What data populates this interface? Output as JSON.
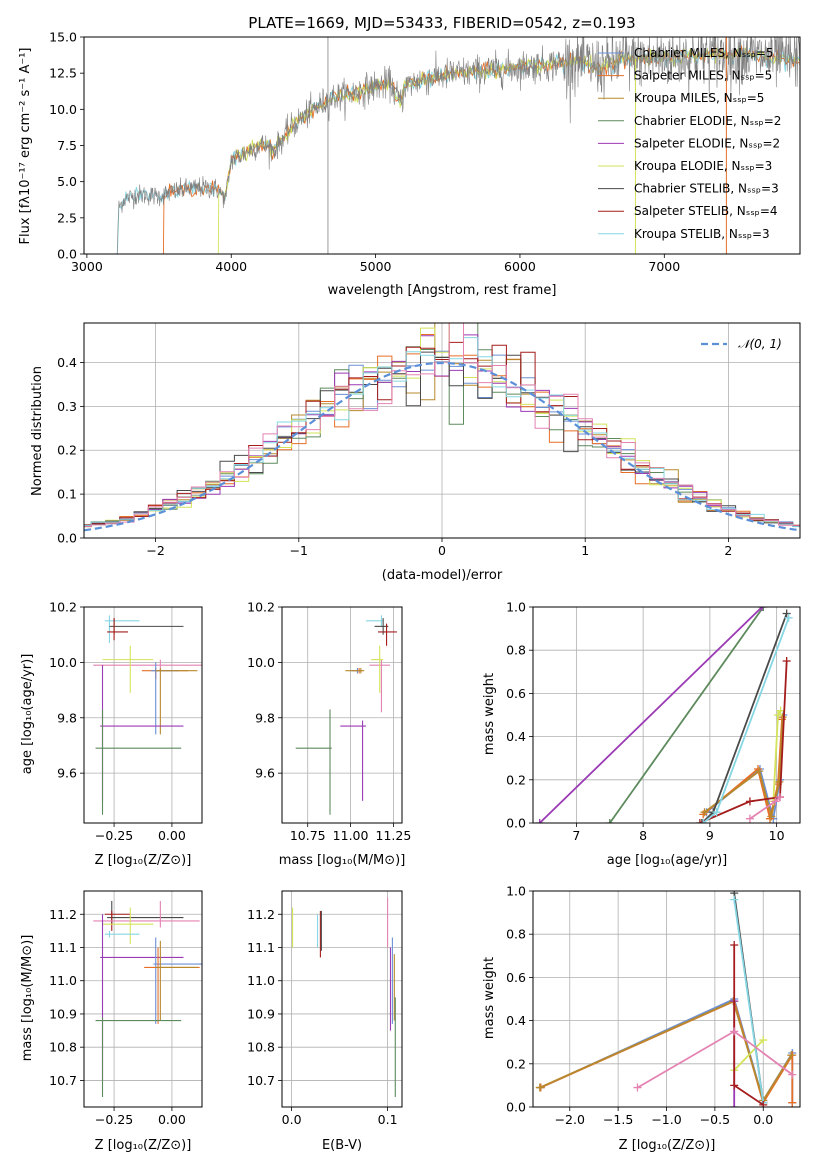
{
  "colors": {
    "Chabrier MILES": "#6b8fd6",
    "Salpeter MILES": "#e66f27",
    "Kroupa MILES": "#b7892d",
    "Chabrier ELODIE": "#5d8a5d",
    "Salpeter ELODIE": "#9b3ab5",
    "Kroupa ELODIE": "#d4e35a",
    "Chabrier STELIB": "#4a4a4a",
    "Salpeter STELIB": "#a51c1c",
    "Kroupa STELIB": "#86d7e3",
    "Pink": "#e482b2",
    "Spectrum": "#808080"
  },
  "chart_data": [
    {
      "id": "spectrum",
      "type": "line",
      "title": "PLATE=1669, MJD=53433, FIBERID=0542, z=0.193",
      "xlabel": "wavelength [Angstrom, rest frame]",
      "ylabel": "Flux [fλ10⁻¹⁷ erg cm⁻² s⁻¹ A⁻¹]",
      "xlim": [
        2980,
        7940
      ],
      "ylim": [
        0,
        15
      ],
      "xticks": [
        "3000",
        "4000",
        "5000",
        "6000",
        "7000"
      ],
      "yticks": [
        "0.0",
        "2.5",
        "5.0",
        "7.5",
        "10.0",
        "12.5",
        "15.0"
      ],
      "legend": [
        "Chabrier MILES, Nₛₛₚ=5",
        "Salpeter MILES, Nₛₛₚ=5",
        "Kroupa MILES, Nₛₛₚ=5",
        "Chabrier ELODIE, Nₛₛₚ=2",
        "Salpeter ELODIE, Nₛₛₚ=2",
        "Kroupa ELODIE, Nₛₛₚ=3",
        "Chabrier STELIB, Nₛₛₚ=3",
        "Salpeter STELIB, Nₛₛₚ=4",
        "Kroupa STELIB, Nₛₛₚ=3"
      ],
      "legend_loc": "upper right",
      "continuum": [
        [
          3210,
          0
        ],
        [
          3220,
          3.2
        ],
        [
          3260,
          3.8
        ],
        [
          3350,
          4.1
        ],
        [
          3500,
          4.0
        ],
        [
          3600,
          4.3
        ],
        [
          3700,
          4.5
        ],
        [
          3800,
          4.6
        ],
        [
          3900,
          4.5
        ],
        [
          3960,
          3.8
        ],
        [
          4000,
          6.5
        ],
        [
          4100,
          7.0
        ],
        [
          4200,
          7.6
        ],
        [
          4300,
          7.2
        ],
        [
          4400,
          8.6
        ],
        [
          4500,
          9.5
        ],
        [
          4600,
          10.2
        ],
        [
          4700,
          10.8
        ],
        [
          4800,
          11.0
        ],
        [
          4900,
          11.3
        ],
        [
          5000,
          11.6
        ],
        [
          5100,
          11.8
        ],
        [
          5180,
          10.4
        ],
        [
          5200,
          11.6
        ],
        [
          5300,
          12.0
        ],
        [
          5500,
          12.4
        ],
        [
          5700,
          12.6
        ],
        [
          5900,
          12.8
        ],
        [
          6000,
          12.9
        ],
        [
          6200,
          13.1
        ],
        [
          6400,
          13.3
        ],
        [
          6560,
          12.9
        ],
        [
          6700,
          13.4
        ],
        [
          6900,
          13.5
        ],
        [
          7100,
          13.6
        ],
        [
          7300,
          13.8
        ],
        [
          7500,
          13.8
        ],
        [
          7700,
          13.6
        ],
        [
          7900,
          13.5
        ]
      ],
      "noise_start": 6300,
      "vline_x": 4670,
      "model_starts": [
        3210,
        3530,
        3910,
        6800,
        7430
      ]
    },
    {
      "id": "residuals",
      "type": "histogram",
      "xlabel": "(data-model)/error",
      "ylabel": "Normed distribution",
      "xlim": [
        -2.5,
        2.5
      ],
      "ylim": [
        0,
        0.49
      ],
      "xticks": [
        "−2",
        "−1",
        "0",
        "1",
        "2"
      ],
      "yticks": [
        "0.0",
        "0.1",
        "0.2",
        "0.3",
        "0.4"
      ],
      "legend": "𝒩(0, 1)",
      "bin_width": 0.1
    },
    {
      "id": "age_vs_Z",
      "type": "errorbar",
      "xlabel": "Z [log₁₀(Z/Z⊙)]",
      "ylabel": "age  [log₁₀(age/yr)]",
      "xlim": [
        -0.38,
        0.13
      ],
      "ylim": [
        9.42,
        10.2
      ],
      "xticks": [
        "−0.25",
        "0.00"
      ],
      "yticks": [
        "9.6",
        "9.8",
        "10.0",
        "10.2"
      ],
      "points": [
        {
          "c": "Kroupa STELIB",
          "x": -0.27,
          "xe": [
            0.02,
            0.13
          ],
          "y": 10.15,
          "ye": [
            0.08,
            0.02
          ]
        },
        {
          "c": "Chabrier STELIB",
          "x": -0.25,
          "xe": [
            0.02,
            0.3
          ],
          "y": 10.13,
          "ye": [
            0.03,
            0.03
          ]
        },
        {
          "c": "Salpeter STELIB",
          "x": -0.25,
          "xe": [
            0.03,
            0.06
          ],
          "y": 10.11,
          "ye": [
            0.03,
            0.05
          ]
        },
        {
          "c": "Pink",
          "x": -0.05,
          "xe": [
            0.29,
            0.18
          ],
          "y": 9.99,
          "ye": [
            0.02,
            0.02
          ]
        },
        {
          "c": "Kroupa ELODIE",
          "x": -0.18,
          "xe": [
            0.12,
            0.1
          ],
          "y": 10.01,
          "ye": [
            0.12,
            0.05
          ]
        },
        {
          "c": "Salpeter MILES",
          "x": -0.07,
          "xe": [
            0.06,
            0.14
          ],
          "y": 9.97,
          "ye": [
            0.03,
            0.01
          ]
        },
        {
          "c": "Chabrier MILES",
          "x": -0.07,
          "xe": [
            0.02,
            0.1
          ],
          "y": 9.97,
          "ye": [
            0.23,
            0.03
          ]
        },
        {
          "c": "Kroupa MILES",
          "x": -0.05,
          "xe": [
            0.02,
            0.16
          ],
          "y": 9.97,
          "ye": [
            0.23,
            0.01
          ]
        },
        {
          "c": "Salpeter ELODIE",
          "x": -0.3,
          "xe": [
            0.01,
            0.35
          ],
          "y": 9.77,
          "ye": [
            0.27,
            0.22
          ]
        },
        {
          "c": "Chabrier ELODIE",
          "x": -0.3,
          "xe": [
            0.03,
            0.34
          ],
          "y": 9.69,
          "ye": [
            0.24,
            0.14
          ]
        }
      ]
    },
    {
      "id": "age_vs_mass",
      "type": "errorbar",
      "xlabel": "mass [log₁₀(M/M⊙)]",
      "ylabel": "",
      "xlim": [
        10.6,
        11.3
      ],
      "ylim": [
        9.42,
        10.2
      ],
      "xticks": [
        "10.75",
        "11.00",
        "11.25"
      ],
      "yticks": [
        "9.6",
        "9.8",
        "10.0",
        "10.2"
      ],
      "points": [
        {
          "c": "Kroupa STELIB",
          "x": 11.18,
          "xe": [
            0.09,
            0.01
          ],
          "y": 10.15,
          "ye": [
            0.02,
            0.02
          ]
        },
        {
          "c": "Chabrier STELIB",
          "x": 11.19,
          "xe": [
            0.05,
            0.03
          ],
          "y": 10.13,
          "ye": [
            0.03,
            0.03
          ]
        },
        {
          "c": "Salpeter STELIB",
          "x": 11.21,
          "xe": [
            0.05,
            0.06
          ],
          "y": 10.11,
          "ye": [
            0.05,
            0.03
          ]
        },
        {
          "c": "Pink",
          "x": 11.18,
          "xe": [
            0.07,
            0.05
          ],
          "y": 9.99,
          "ye": [
            0.17,
            0.02
          ]
        },
        {
          "c": "Kroupa ELODIE",
          "x": 11.17,
          "xe": [
            0.05,
            0.02
          ],
          "y": 10.01,
          "ye": [
            0.12,
            0.05
          ]
        },
        {
          "c": "Salpeter MILES",
          "x": 11.05,
          "xe": [
            0.04,
            0.02
          ],
          "y": 9.97,
          "ye": [
            0.01,
            0.01
          ]
        },
        {
          "c": "Chabrier MILES",
          "x": 11.04,
          "xe": [
            0.04,
            0.02
          ],
          "y": 9.97,
          "ye": [
            0.01,
            0.01
          ]
        },
        {
          "c": "Kroupa MILES",
          "x": 11.06,
          "xe": [
            0.09,
            0.02
          ],
          "y": 9.97,
          "ye": [
            0.01,
            0.01
          ]
        },
        {
          "c": "Salpeter ELODIE",
          "x": 11.07,
          "xe": [
            0.13,
            0.02
          ],
          "y": 9.77,
          "ye": [
            0.27,
            0.02
          ]
        },
        {
          "c": "Chabrier ELODIE",
          "x": 10.88,
          "xe": [
            0.2,
            0.01
          ],
          "y": 9.69,
          "ye": [
            0.24,
            0.14
          ]
        }
      ]
    },
    {
      "id": "weight_vs_age",
      "type": "line",
      "xlabel": "age  [log₁₀(age/yr)]",
      "ylabel": "mass weight",
      "xlim": [
        6.35,
        10.35
      ],
      "ylim": [
        0,
        1
      ],
      "xticks": [
        "7",
        "8",
        "9",
        "10"
      ],
      "yticks": [
        "0.0",
        "0.2",
        "0.4",
        "0.6",
        "0.8",
        "1.0"
      ],
      "series": [
        {
          "c": "Chabrier MILES",
          "x": [
            8.95,
            9.75,
            9.95,
            10.05,
            10.1
          ],
          "y": [
            0.05,
            0.25,
            0.02,
            0.2,
            0.5
          ]
        },
        {
          "c": "Salpeter MILES",
          "x": [
            8.9,
            9.72,
            9.9,
            10.02,
            10.08
          ],
          "y": [
            0.04,
            0.25,
            0.02,
            0.18,
            0.48
          ]
        },
        {
          "c": "Kroupa MILES",
          "x": [
            8.92,
            9.74,
            9.92,
            10.04,
            10.09
          ],
          "y": [
            0.05,
            0.24,
            0.03,
            0.19,
            0.49
          ]
        },
        {
          "c": "Chabrier ELODIE",
          "x": [
            7.5,
            9.8
          ],
          "y": [
            0.0,
            1.0
          ]
        },
        {
          "c": "Salpeter ELODIE",
          "x": [
            6.45,
            9.78
          ],
          "y": [
            0.0,
            1.0
          ]
        },
        {
          "c": "Kroupa ELODIE",
          "x": [
            9.95,
            10.02,
            10.06
          ],
          "y": [
            0.1,
            0.5,
            0.52
          ]
        },
        {
          "c": "Chabrier STELIB",
          "x": [
            8.88,
            9.05,
            10.15
          ],
          "y": [
            0.0,
            0.05,
            0.97
          ]
        },
        {
          "c": "Salpeter STELIB",
          "x": [
            8.85,
            9.6,
            10.05,
            10.15
          ],
          "y": [
            0.0,
            0.1,
            0.12,
            0.75
          ]
        },
        {
          "c": "Kroupa STELIB",
          "x": [
            8.9,
            9.1,
            10.18
          ],
          "y": [
            0.0,
            0.05,
            0.95
          ]
        },
        {
          "c": "Pink",
          "x": [
            9.6,
            9.98,
            10.05
          ],
          "y": [
            0.02,
            0.1,
            0.12
          ]
        }
      ]
    },
    {
      "id": "mass_vs_Z",
      "type": "errorbar",
      "xlabel": "Z [log₁₀(Z/Z⊙)]",
      "ylabel": "mass [log₁₀(M/M⊙)]",
      "xlim": [
        -0.38,
        0.13
      ],
      "ylim": [
        10.62,
        11.27
      ],
      "xticks": [
        "−0.25",
        "0.00"
      ],
      "yticks": [
        "10.7",
        "10.8",
        "10.9",
        "11.0",
        "11.1",
        "11.2"
      ],
      "points": [
        {
          "c": "Chabrier STELIB",
          "x": -0.26,
          "xe": [
            0.02,
            0.31
          ],
          "y": 11.19,
          "ye": [
            0.02,
            0.05
          ]
        },
        {
          "c": "Salpeter STELIB",
          "x": -0.26,
          "xe": [
            0.03,
            0.08
          ],
          "y": 11.2,
          "ye": [
            0.05,
            0.01
          ]
        },
        {
          "c": "Pink",
          "x": -0.05,
          "xe": [
            0.29,
            0.17
          ],
          "y": 11.18,
          "ye": [
            0.02,
            0.06
          ]
        },
        {
          "c": "Kroupa ELODIE",
          "x": -0.18,
          "xe": [
            0.12,
            0.1
          ],
          "y": 11.17,
          "ye": [
            0.06,
            0.05
          ]
        },
        {
          "c": "Kroupa STELIB",
          "x": -0.27,
          "xe": [
            0.02,
            0.13
          ],
          "y": 11.14,
          "ye": [
            0.01,
            0.01
          ]
        },
        {
          "c": "Salpeter ELODIE",
          "x": -0.3,
          "xe": [
            0.01,
            0.35
          ],
          "y": 11.07,
          "ye": [
            0.37,
            0.13
          ]
        },
        {
          "c": "Chabrier MILES",
          "x": -0.07,
          "xe": [
            0.01,
            0.2
          ],
          "y": 11.05,
          "ye": [
            0.18,
            0.08
          ]
        },
        {
          "c": "Salpeter MILES",
          "x": -0.06,
          "xe": [
            0.06,
            0.18
          ],
          "y": 11.04,
          "ye": [
            0.17,
            0.06
          ]
        },
        {
          "c": "Kroupa MILES",
          "x": -0.05,
          "xe": [
            0.02,
            0.16
          ],
          "y": 11.04,
          "ye": [
            0.16,
            0.08
          ]
        },
        {
          "c": "Chabrier ELODIE",
          "x": -0.3,
          "xe": [
            0.03,
            0.34
          ],
          "y": 10.88,
          "ye": [
            0.23,
            0.01
          ]
        }
      ]
    },
    {
      "id": "mass_vs_EBV",
      "type": "errorbar",
      "xlabel": "E(B-V)",
      "ylabel": "",
      "xlim": [
        -0.01,
        0.115
      ],
      "ylim": [
        10.62,
        11.27
      ],
      "xticks": [
        "0.0",
        "0.1"
      ],
      "yticks": [
        "10.7",
        "10.8",
        "10.9",
        "11.0",
        "11.1",
        "11.2"
      ],
      "points": [
        {
          "c": "Kroupa ELODIE",
          "x": 0.001,
          "xe": [
            0,
            0
          ],
          "y": 11.17,
          "ye": [
            0.07,
            0.05
          ]
        },
        {
          "c": "Kroupa STELIB",
          "x": 0.027,
          "xe": [
            0,
            0
          ],
          "y": 11.14,
          "ye": [
            0.04,
            0.06
          ]
        },
        {
          "c": "Salpeter STELIB",
          "x": 0.03,
          "xe": [
            0,
            0
          ],
          "y": 11.16,
          "ye": [
            0.09,
            0.05
          ]
        },
        {
          "c": "Chabrier STELIB",
          "x": 0.031,
          "xe": [
            0,
            0
          ],
          "y": 11.15,
          "ye": [
            0.06,
            0.06
          ]
        },
        {
          "c": "Pink",
          "x": 0.1,
          "xe": [
            0,
            0
          ],
          "y": 11.17,
          "ye": [
            0.07,
            0.08
          ]
        },
        {
          "c": "Salpeter ELODIE",
          "x": 0.103,
          "xe": [
            0,
            0
          ],
          "y": 11.0,
          "ye": [
            0.15,
            0.1
          ]
        },
        {
          "c": "Chabrier MILES",
          "x": 0.105,
          "xe": [
            0,
            0
          ],
          "y": 11.05,
          "ye": [
            0.18,
            0.08
          ]
        },
        {
          "c": "Kroupa MILES",
          "x": 0.107,
          "xe": [
            0,
            0
          ],
          "y": 11.0,
          "ye": [
            0.12,
            0.08
          ]
        },
        {
          "c": "Chabrier ELODIE",
          "x": 0.108,
          "xe": [
            0,
            0
          ],
          "y": 10.85,
          "ye": [
            0.2,
            0.1
          ]
        }
      ]
    },
    {
      "id": "weight_vs_Z",
      "type": "line",
      "xlabel": "Z [log₁₀(Z/Z⊙)]",
      "ylabel": "mass weight",
      "xlim": [
        -2.38,
        0.38
      ],
      "ylim": [
        0,
        1
      ],
      "xticks": [
        "−2.0",
        "−1.5",
        "−1.0",
        "−0.5",
        "0.0"
      ],
      "yticks": [
        "0.0",
        "0.2",
        "0.4",
        "0.6",
        "0.8",
        "1.0"
      ],
      "series": [
        {
          "c": "Chabrier MILES",
          "x": [
            -2.3,
            -0.3,
            0.0,
            0.3,
            0.3
          ],
          "y": [
            0.09,
            0.5,
            0.03,
            0.25,
            0.02
          ]
        },
        {
          "c": "Salpeter MILES",
          "x": [
            -2.3,
            -0.3,
            0.0,
            0.3,
            0.3
          ],
          "y": [
            0.09,
            0.49,
            0.02,
            0.24,
            0.02
          ]
        },
        {
          "c": "Kroupa MILES",
          "x": [
            -2.31,
            -0.31,
            0.0,
            0.29
          ],
          "y": [
            0.09,
            0.49,
            0.03,
            0.24
          ]
        },
        {
          "c": "Salpeter ELODIE",
          "x": [
            -0.3,
            -0.3
          ],
          "y": [
            0.0,
            0.49
          ]
        },
        {
          "c": "Kroupa ELODIE",
          "x": [
            -0.3,
            0.0
          ],
          "y": [
            0.17,
            0.31
          ]
        },
        {
          "c": "Chabrier STELIB",
          "x": [
            -0.3,
            0.0
          ],
          "y": [
            0.99,
            0.02
          ]
        },
        {
          "c": "Kroupa STELIB",
          "x": [
            -0.3,
            0.0
          ],
          "y": [
            0.96,
            0.02
          ]
        },
        {
          "c": "Salpeter STELIB",
          "x": [
            -0.3,
            -0.3,
            0.0
          ],
          "y": [
            0.75,
            0.1,
            0.01
          ]
        },
        {
          "c": "Pink",
          "x": [
            -1.3,
            -0.3,
            0.3
          ],
          "y": [
            0.09,
            0.35,
            0.15
          ]
        }
      ]
    }
  ]
}
